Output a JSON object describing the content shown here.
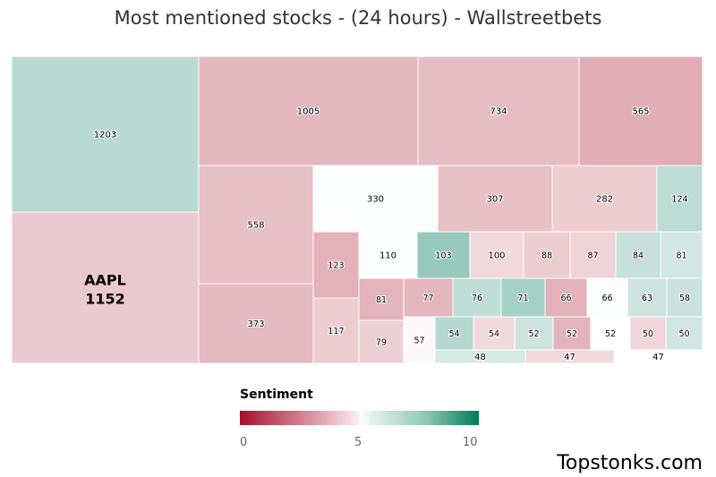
{
  "title": "Most mentioned stocks - (24 hours) - Wallstreetbets",
  "watermark": "Topstonks.com",
  "legend": {
    "title": "Sentiment",
    "ticks": [
      "0",
      "5",
      "10"
    ],
    "colors": [
      "#a6102c",
      "#ffffff",
      "#00795a"
    ]
  },
  "chart_data": {
    "type": "treemap",
    "title": "Most mentioned stocks - (24 hours) - Wallstreetbets",
    "color_scale": {
      "label": "Sentiment",
      "min": 0,
      "mid": 5,
      "max": 10
    },
    "items": [
      {
        "label": "",
        "value": 1203,
        "sentiment": 6.2
      },
      {
        "label": "AAPL",
        "value": 1152,
        "sentiment": 4.2
      },
      {
        "label": "",
        "value": 1005,
        "sentiment": 3.6
      },
      {
        "label": "",
        "value": 734,
        "sentiment": 3.8
      },
      {
        "label": "",
        "value": 565,
        "sentiment": 3.3
      },
      {
        "label": "",
        "value": 558,
        "sentiment": 3.9
      },
      {
        "label": "",
        "value": 373,
        "sentiment": 3.7
      },
      {
        "label": "",
        "value": 330,
        "sentiment": 5.1
      },
      {
        "label": "",
        "value": 307,
        "sentiment": 3.9
      },
      {
        "label": "",
        "value": 282,
        "sentiment": 4.3
      },
      {
        "label": "",
        "value": 124,
        "sentiment": 6.1
      },
      {
        "label": "",
        "value": 123,
        "sentiment": 3.4
      },
      {
        "label": "",
        "value": 117,
        "sentiment": 4.3
      },
      {
        "label": "",
        "value": 110,
        "sentiment": 5.1
      },
      {
        "label": "",
        "value": 103,
        "sentiment": 7.2
      },
      {
        "label": "",
        "value": 100,
        "sentiment": 4.7
      },
      {
        "label": "",
        "value": 88,
        "sentiment": 4.3
      },
      {
        "label": "",
        "value": 87,
        "sentiment": 4.5
      },
      {
        "label": "",
        "value": 84,
        "sentiment": 5.8
      },
      {
        "label": "",
        "value": 81,
        "sentiment": 5.4
      },
      {
        "label": "",
        "value": 81,
        "sentiment": 3.5
      },
      {
        "label": "",
        "value": 79,
        "sentiment": 4.4
      },
      {
        "label": "",
        "value": 77,
        "sentiment": 3.6
      },
      {
        "label": "",
        "value": 76,
        "sentiment": 6.0
      },
      {
        "label": "",
        "value": 71,
        "sentiment": 6.8
      },
      {
        "label": "",
        "value": 66,
        "sentiment": 3.4
      },
      {
        "label": "",
        "value": 66,
        "sentiment": 5.1
      },
      {
        "label": "",
        "value": 63,
        "sentiment": 5.6
      },
      {
        "label": "",
        "value": 58,
        "sentiment": 5.7
      },
      {
        "label": "",
        "value": 57,
        "sentiment": 4.8
      },
      {
        "label": "",
        "value": 54,
        "sentiment": 6.3
      },
      {
        "label": "",
        "value": 54,
        "sentiment": 4.7
      },
      {
        "label": "",
        "value": 52,
        "sentiment": 5.6
      },
      {
        "label": "",
        "value": 52,
        "sentiment": 3.5
      },
      {
        "label": "",
        "value": 52,
        "sentiment": 5.0
      },
      {
        "label": "",
        "value": 50,
        "sentiment": 4.6
      },
      {
        "label": "",
        "value": 50,
        "sentiment": 5.5
      },
      {
        "label": "",
        "value": 48,
        "sentiment": 5.3
      },
      {
        "label": "",
        "value": 47,
        "sentiment": 4.7
      },
      {
        "label": "",
        "value": 47,
        "sentiment": 5.0
      }
    ]
  }
}
